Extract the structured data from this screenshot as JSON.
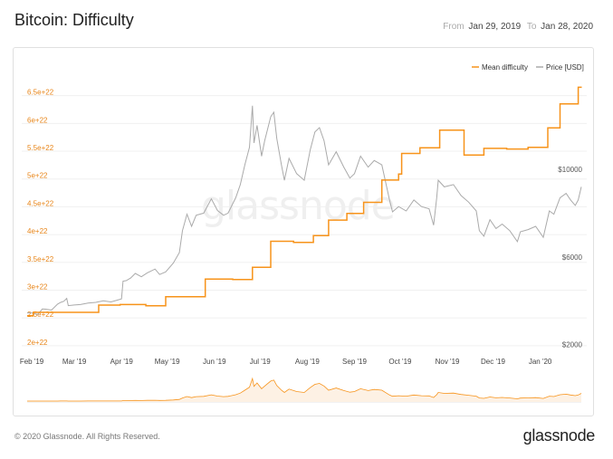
{
  "header": {
    "title": "Bitcoin: Difficulty",
    "from_label": "From",
    "from_date": "Jan 29, 2019",
    "to_label": "To",
    "to_date": "Jan 28, 2020"
  },
  "watermark": "glassnode",
  "footer": {
    "copyright": "© 2020 Glassnode. All Rights Reserved.",
    "logo": "glassnode"
  },
  "colors": {
    "difficulty": "#f7931a",
    "price": "#aaaaaa",
    "left_tick": "#e8861a"
  },
  "chart_data": {
    "type": "line",
    "title": "Bitcoin: Difficulty",
    "legend": {
      "placement": "top-right"
    },
    "grid": {
      "horizontal": true,
      "vertical": false
    },
    "x_labels": [
      "Feb '19",
      "Mar '19",
      "Apr '19",
      "May '19",
      "Jun '19",
      "Jul '19",
      "Aug '19",
      "Sep '19",
      "Oct '19",
      "Nov '19",
      "Dec '19",
      "Jan '20"
    ],
    "y_left": {
      "range": [
        1.9e+22,
        6.95e+22
      ],
      "ticks": [
        "2e+22",
        "2.5e+22",
        "3e+22",
        "3.5e+22",
        "4e+22",
        "4.5e+22",
        "5e+22",
        "5.5e+22",
        "6e+22",
        "6.5e+22"
      ],
      "tick_values": [
        2e+22,
        2.5e+22,
        3e+22,
        3.5e+22,
        4e+22,
        4.5e+22,
        5e+22,
        5.5e+22,
        6e+22,
        6.5e+22
      ]
    },
    "y_right": {
      "range": [
        1700,
        14500
      ],
      "ticks": [
        "$2000",
        "$6000",
        "$10000"
      ],
      "tick_values": [
        2000,
        6000,
        10000
      ]
    },
    "series": [
      {
        "name": "Mean difficulty",
        "axis": "left",
        "step": true,
        "points": [
          [
            "2019-01-29",
            2.54e+22
          ],
          [
            "2019-02-02",
            2.6e+22
          ],
          [
            "2019-03-17",
            2.73e+22
          ],
          [
            "2019-03-31",
            2.74e+22
          ],
          [
            "2019-04-17",
            2.72e+22
          ],
          [
            "2019-04-30",
            2.88e+22
          ],
          [
            "2019-05-26",
            3.2e+22
          ],
          [
            "2019-06-13",
            3.19e+22
          ],
          [
            "2019-06-26",
            3.41e+22
          ],
          [
            "2019-07-08",
            3.88e+22
          ],
          [
            "2019-07-23",
            3.86e+22
          ],
          [
            "2019-08-05",
            3.98e+22
          ],
          [
            "2019-08-15",
            4.26e+22
          ],
          [
            "2019-08-27",
            4.38e+22
          ],
          [
            "2019-09-07",
            4.58e+22
          ],
          [
            "2019-09-19",
            4.98e+22
          ],
          [
            "2019-09-30",
            5.09e+22
          ],
          [
            "2019-10-02",
            5.46e+22
          ],
          [
            "2019-10-14",
            5.56e+22
          ],
          [
            "2019-10-27",
            5.88e+22
          ],
          [
            "2019-11-12",
            5.43e+22
          ],
          [
            "2019-11-25",
            5.55e+22
          ],
          [
            "2019-12-10",
            5.54e+22
          ],
          [
            "2019-12-24",
            5.57e+22
          ],
          [
            "2020-01-06",
            5.92e+22
          ],
          [
            "2020-01-14",
            6.35e+22
          ],
          [
            "2020-01-26",
            6.65e+22
          ]
        ]
      },
      {
        "name": "Price [USD]",
        "axis": "right",
        "step": false,
        "points": [
          [
            "2019-01-29",
            3450
          ],
          [
            "2019-02-01",
            3450
          ],
          [
            "2019-02-05",
            3380
          ],
          [
            "2019-02-08",
            3630
          ],
          [
            "2019-02-10",
            3620
          ],
          [
            "2019-02-14",
            3580
          ],
          [
            "2019-02-18",
            3850
          ],
          [
            "2019-02-20",
            3930
          ],
          [
            "2019-02-22",
            3980
          ],
          [
            "2019-02-24",
            4110
          ],
          [
            "2019-02-25",
            3780
          ],
          [
            "2019-03-01",
            3810
          ],
          [
            "2019-03-05",
            3830
          ],
          [
            "2019-03-10",
            3900
          ],
          [
            "2019-03-15",
            3930
          ],
          [
            "2019-03-20",
            4000
          ],
          [
            "2019-03-25",
            3950
          ],
          [
            "2019-03-28",
            4010
          ],
          [
            "2019-04-01",
            4090
          ],
          [
            "2019-04-02",
            4900
          ],
          [
            "2019-04-04",
            4920
          ],
          [
            "2019-04-07",
            5040
          ],
          [
            "2019-04-10",
            5250
          ],
          [
            "2019-04-14",
            5100
          ],
          [
            "2019-04-18",
            5280
          ],
          [
            "2019-04-23",
            5450
          ],
          [
            "2019-04-26",
            5200
          ],
          [
            "2019-04-30",
            5320
          ],
          [
            "2019-05-05",
            5720
          ],
          [
            "2019-05-09",
            6200
          ],
          [
            "2019-05-11",
            7200
          ],
          [
            "2019-05-14",
            7950
          ],
          [
            "2019-05-17",
            7400
          ],
          [
            "2019-05-20",
            7900
          ],
          [
            "2019-05-25",
            8000
          ],
          [
            "2019-05-30",
            8650
          ],
          [
            "2019-06-03",
            8120
          ],
          [
            "2019-06-07",
            7900
          ],
          [
            "2019-06-10",
            8000
          ],
          [
            "2019-06-15",
            8700
          ],
          [
            "2019-06-18",
            9300
          ],
          [
            "2019-06-21",
            10200
          ],
          [
            "2019-06-24",
            11000
          ],
          [
            "2019-06-26",
            12900
          ],
          [
            "2019-06-27",
            11200
          ],
          [
            "2019-06-29",
            12000
          ],
          [
            "2019-07-02",
            10600
          ],
          [
            "2019-07-04",
            11300
          ],
          [
            "2019-07-08",
            12400
          ],
          [
            "2019-07-10",
            12600
          ],
          [
            "2019-07-12",
            11400
          ],
          [
            "2019-07-15",
            10200
          ],
          [
            "2019-07-17",
            9500
          ],
          [
            "2019-07-20",
            10500
          ],
          [
            "2019-07-25",
            9800
          ],
          [
            "2019-07-30",
            9500
          ],
          [
            "2019-08-03",
            10900
          ],
          [
            "2019-08-06",
            11700
          ],
          [
            "2019-08-09",
            11900
          ],
          [
            "2019-08-12",
            11300
          ],
          [
            "2019-08-15",
            10200
          ],
          [
            "2019-08-20",
            10800
          ],
          [
            "2019-08-25",
            10100
          ],
          [
            "2019-08-29",
            9600
          ],
          [
            "2019-09-01",
            9800
          ],
          [
            "2019-09-05",
            10600
          ],
          [
            "2019-09-10",
            10100
          ],
          [
            "2019-09-14",
            10400
          ],
          [
            "2019-09-19",
            10200
          ],
          [
            "2019-09-24",
            8600
          ],
          [
            "2019-09-26",
            8060
          ],
          [
            "2019-09-30",
            8300
          ],
          [
            "2019-10-05",
            8100
          ],
          [
            "2019-10-10",
            8600
          ],
          [
            "2019-10-15",
            8300
          ],
          [
            "2019-10-20",
            8200
          ],
          [
            "2019-10-23",
            7450
          ],
          [
            "2019-10-25",
            8700
          ],
          [
            "2019-10-26",
            9500
          ],
          [
            "2019-10-30",
            9200
          ],
          [
            "2019-11-05",
            9300
          ],
          [
            "2019-11-10",
            8800
          ],
          [
            "2019-11-15",
            8500
          ],
          [
            "2019-11-20",
            8100
          ],
          [
            "2019-11-22",
            7200
          ],
          [
            "2019-11-25",
            6950
          ],
          [
            "2019-11-29",
            7700
          ],
          [
            "2019-12-03",
            7300
          ],
          [
            "2019-12-07",
            7500
          ],
          [
            "2019-12-12",
            7200
          ],
          [
            "2019-12-17",
            6700
          ],
          [
            "2019-12-19",
            7150
          ],
          [
            "2019-12-24",
            7250
          ],
          [
            "2019-12-29",
            7400
          ],
          [
            "2020-01-03",
            6900
          ],
          [
            "2020-01-07",
            8100
          ],
          [
            "2020-01-10",
            7950
          ],
          [
            "2020-01-14",
            8700
          ],
          [
            "2020-01-18",
            8900
          ],
          [
            "2020-01-21",
            8600
          ],
          [
            "2020-01-24",
            8350
          ],
          [
            "2020-01-26",
            8600
          ],
          [
            "2020-01-28",
            9200
          ]
        ]
      }
    ]
  }
}
